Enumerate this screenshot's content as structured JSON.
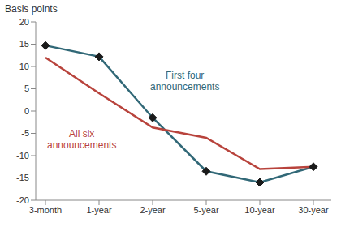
{
  "chart_data": {
    "type": "line",
    "y_label": "Basis points",
    "categories": [
      "3-month",
      "1-year",
      "2-year",
      "5-year",
      "10-year",
      "30-year"
    ],
    "series": [
      {
        "name": "First four announcements",
        "color": "#316877",
        "marker": "diamond",
        "line_style": "solid",
        "values": [
          14.7,
          12.2,
          -1.5,
          -13.5,
          -16,
          -12.5
        ]
      },
      {
        "name": "All six announcements",
        "color": "#b8433c",
        "marker": "none",
        "line_style": "solid",
        "values": [
          12,
          4,
          -3.7,
          -6,
          -13,
          -12.5
        ]
      }
    ],
    "ylim": [
      -20,
      20
    ],
    "yticks": [
      -20,
      -15,
      -10,
      -5,
      0,
      5,
      10,
      15,
      20
    ],
    "grid": false
  }
}
